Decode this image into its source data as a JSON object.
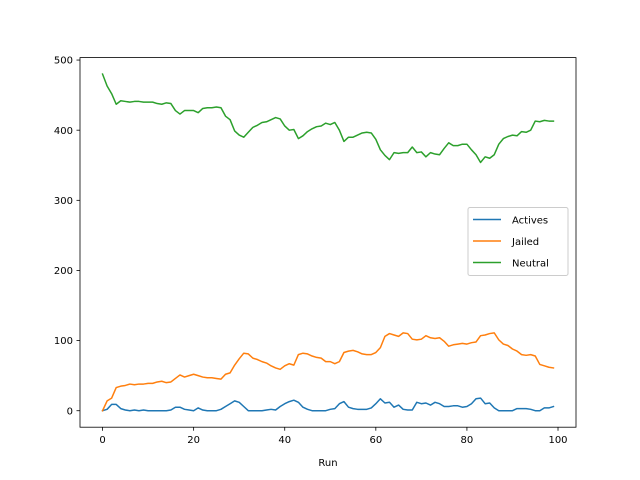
{
  "chart_data": {
    "type": "line",
    "title": "",
    "xlabel": "Run",
    "ylabel": "",
    "xlim": [
      -4.95,
      103.95
    ],
    "ylim": [
      -23.5,
      503.5
    ],
    "xticks": [
      0,
      20,
      40,
      60,
      80,
      100
    ],
    "yticks": [
      0,
      100,
      200,
      300,
      400,
      500
    ],
    "grid": false,
    "legend_position": "center-right",
    "series": [
      {
        "name": "Actives",
        "color": "#1f77b4",
        "x": [
          0,
          1,
          2,
          3,
          4,
          5,
          6,
          7,
          8,
          9,
          10,
          11,
          12,
          13,
          14,
          15,
          16,
          17,
          18,
          19,
          20,
          21,
          22,
          23,
          24,
          25,
          26,
          27,
          28,
          29,
          30,
          31,
          32,
          33,
          34,
          35,
          36,
          37,
          38,
          39,
          40,
          41,
          42,
          43,
          44,
          45,
          46,
          47,
          48,
          49,
          50,
          51,
          52,
          53,
          54,
          55,
          56,
          57,
          58,
          59,
          60,
          61,
          62,
          63,
          64,
          65,
          66,
          67,
          68,
          69,
          70,
          71,
          72,
          73,
          74,
          75,
          76,
          77,
          78,
          79,
          80,
          81,
          82,
          83,
          84,
          85,
          86,
          87,
          88,
          89,
          90,
          91,
          92,
          93,
          94,
          95,
          96,
          97,
          98,
          99
        ],
        "values": [
          0,
          2,
          9,
          9,
          3,
          1,
          0,
          1,
          0,
          1,
          0,
          0,
          0,
          0,
          0,
          1,
          5,
          5,
          2,
          1,
          0,
          4,
          1,
          0,
          0,
          0,
          2,
          6,
          10,
          14,
          12,
          6,
          0,
          0,
          0,
          0,
          1,
          2,
          1,
          6,
          10,
          13,
          15,
          12,
          5,
          2,
          0,
          0,
          0,
          0,
          2,
          3,
          10,
          13,
          5,
          3,
          2,
          2,
          2,
          4,
          10,
          17,
          11,
          12,
          5,
          8,
          2,
          1,
          1,
          12,
          10,
          11,
          8,
          12,
          10,
          6,
          6,
          7,
          7,
          5,
          6,
          10,
          17,
          18,
          10,
          11,
          4,
          0,
          0,
          0,
          0,
          3,
          3,
          3,
          2,
          0,
          0,
          4,
          4,
          6
        ]
      },
      {
        "name": "Jailed",
        "color": "#ff7f0e",
        "x": [
          0,
          1,
          2,
          3,
          4,
          5,
          6,
          7,
          8,
          9,
          10,
          11,
          12,
          13,
          14,
          15,
          16,
          17,
          18,
          19,
          20,
          21,
          22,
          23,
          24,
          25,
          26,
          27,
          28,
          29,
          30,
          31,
          32,
          33,
          34,
          35,
          36,
          37,
          38,
          39,
          40,
          41,
          42,
          43,
          44,
          45,
          46,
          47,
          48,
          49,
          50,
          51,
          52,
          53,
          54,
          55,
          56,
          57,
          58,
          59,
          60,
          61,
          62,
          63,
          64,
          65,
          66,
          67,
          68,
          69,
          70,
          71,
          72,
          73,
          74,
          75,
          76,
          77,
          78,
          79,
          80,
          81,
          82,
          83,
          84,
          85,
          86,
          87,
          88,
          89,
          90,
          91,
          92,
          93,
          94,
          95,
          96,
          97,
          98,
          99
        ],
        "values": [
          0,
          14,
          18,
          33,
          35,
          36,
          38,
          37,
          38,
          38,
          39,
          39,
          41,
          42,
          40,
          41,
          46,
          51,
          48,
          50,
          52,
          50,
          48,
          47,
          47,
          46,
          45,
          52,
          54,
          65,
          74,
          82,
          81,
          75,
          73,
          70,
          68,
          64,
          61,
          59,
          64,
          67,
          65,
          80,
          82,
          81,
          78,
          76,
          75,
          70,
          70,
          67,
          70,
          83,
          85,
          86,
          84,
          81,
          80,
          80,
          83,
          90,
          106,
          110,
          108,
          106,
          111,
          110,
          102,
          101,
          102,
          107,
          104,
          103,
          104,
          99,
          92,
          94,
          95,
          96,
          95,
          97,
          98,
          107,
          108,
          110,
          111,
          101,
          95,
          93,
          88,
          85,
          80,
          79,
          80,
          78,
          66,
          64,
          62,
          61
        ]
      },
      {
        "name": "Neutral",
        "color": "#2ca02c",
        "x": [
          0,
          1,
          2,
          3,
          4,
          5,
          6,
          7,
          8,
          9,
          10,
          11,
          12,
          13,
          14,
          15,
          16,
          17,
          18,
          19,
          20,
          21,
          22,
          23,
          24,
          25,
          26,
          27,
          28,
          29,
          30,
          31,
          32,
          33,
          34,
          35,
          36,
          37,
          38,
          39,
          40,
          41,
          42,
          43,
          44,
          45,
          46,
          47,
          48,
          49,
          50,
          51,
          52,
          53,
          54,
          55,
          56,
          57,
          58,
          59,
          60,
          61,
          62,
          63,
          64,
          65,
          66,
          67,
          68,
          69,
          70,
          71,
          72,
          73,
          74,
          75,
          76,
          77,
          78,
          79,
          80,
          81,
          82,
          83,
          84,
          85,
          86,
          87,
          88,
          89,
          90,
          91,
          92,
          93,
          94,
          95,
          96,
          97,
          98,
          99
        ],
        "values": [
          480,
          463,
          452,
          437,
          442,
          441,
          440,
          441,
          441,
          440,
          440,
          440,
          438,
          437,
          439,
          438,
          428,
          423,
          428,
          428,
          428,
          425,
          431,
          432,
          432,
          433,
          432,
          420,
          415,
          399,
          393,
          390,
          397,
          404,
          407,
          411,
          412,
          415,
          418,
          416,
          406,
          400,
          401,
          388,
          392,
          398,
          402,
          405,
          406,
          410,
          408,
          411,
          400,
          384,
          390,
          390,
          393,
          396,
          397,
          396,
          387,
          372,
          364,
          358,
          368,
          367,
          368,
          368,
          376,
          368,
          369,
          362,
          368,
          366,
          365,
          374,
          382,
          378,
          378,
          380,
          380,
          372,
          365,
          354,
          362,
          360,
          365,
          380,
          388,
          391,
          393,
          392,
          398,
          397,
          400,
          413,
          412,
          414,
          413,
          413
        ]
      }
    ]
  }
}
